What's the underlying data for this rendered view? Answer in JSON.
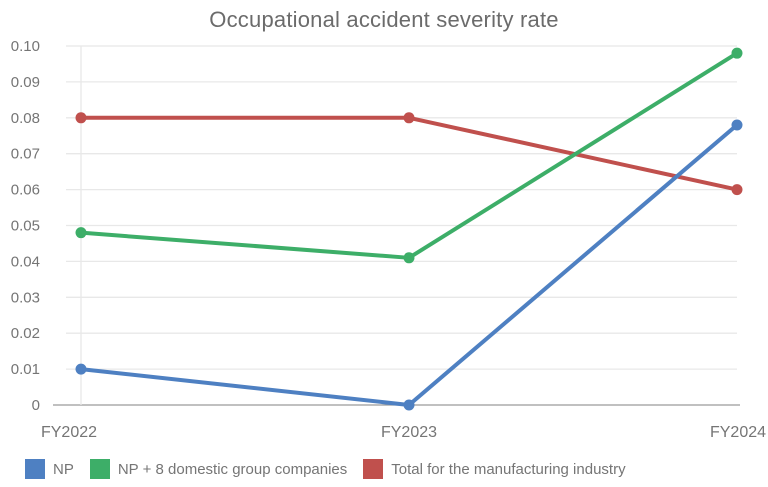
{
  "chart_data": {
    "type": "line",
    "title": "Occupational accident severity rate",
    "categories": [
      "FY2022",
      "FY2023",
      "FY2024"
    ],
    "series": [
      {
        "name": "NP",
        "color": "#4E80C2",
        "values": [
          0.01,
          0,
          0.078
        ]
      },
      {
        "name": "NP + 8 domestic group companies",
        "color": "#3DAE68",
        "values": [
          0.048,
          0.041,
          0.098
        ]
      },
      {
        "name": "Total for the manufacturing industry",
        "color": "#C0504D",
        "values": [
          0.08,
          0.08,
          0.06
        ]
      }
    ],
    "ylim": [
      0,
      0.1
    ],
    "yticks": [
      {
        "value": 0,
        "label": "0"
      },
      {
        "value": 0.01,
        "label": "0.01"
      },
      {
        "value": 0.02,
        "label": "0.02"
      },
      {
        "value": 0.03,
        "label": "0.03"
      },
      {
        "value": 0.04,
        "label": "0.04"
      },
      {
        "value": 0.05,
        "label": "0.05"
      },
      {
        "value": 0.06,
        "label": "0.06"
      },
      {
        "value": 0.07,
        "label": "0.07"
      },
      {
        "value": 0.08,
        "label": "0.08"
      },
      {
        "value": 0.09,
        "label": "0.09"
      },
      {
        "value": 0.1,
        "label": "0.10"
      }
    ],
    "grid": "horizontal",
    "legend_position": "bottom",
    "colors": {
      "title": "#6b6b6b",
      "tick_label": "#757575",
      "gridline": "#e8e8e8",
      "baseline": "#9a9a9a",
      "background": "#ffffff"
    }
  }
}
